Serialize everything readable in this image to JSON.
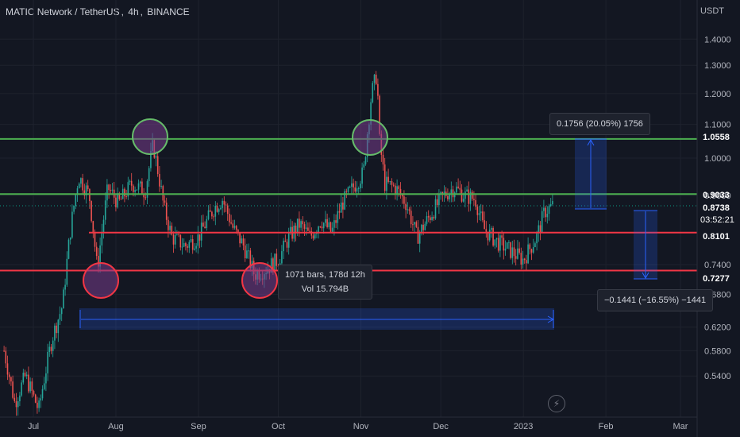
{
  "header": {
    "symbol": "MATIC Network / TetherUS",
    "interval": "4h",
    "exchange": "BINANCE",
    "sep": ", "
  },
  "currency": "USDT",
  "price_axis": {
    "labels": [
      "1.4000",
      "1.3000",
      "1.2000",
      "1.1000",
      "1.0000",
      "0.9000",
      "0.7400",
      "0.6800",
      "0.6200",
      "0.5800",
      "0.5400"
    ],
    "values": [
      1.4,
      1.3,
      1.2,
      1.1,
      1.0,
      0.9,
      0.74,
      0.68,
      0.62,
      0.58,
      0.54
    ]
  },
  "time_axis": {
    "labels": [
      "Jul",
      "Aug",
      "Sep",
      "Oct",
      "Nov",
      "Dec",
      "2023",
      "Feb",
      "Mar"
    ]
  },
  "price_tags": [
    {
      "label": "1.0558",
      "color": "#4caf50"
    },
    {
      "label": "0.9033",
      "color": "#4caf50"
    },
    {
      "label": "0.8738",
      "color": "#089981"
    },
    {
      "label": "03:52:21",
      "color": "#089981"
    },
    {
      "label": "0.8101",
      "color": "#f23645"
    },
    {
      "label": "0.7277",
      "color": "#f23645"
    }
  ],
  "horizontal_lines": [
    {
      "price": 1.0558,
      "color": "#4caf50",
      "name": "resistance-upper"
    },
    {
      "price": 0.9033,
      "color": "#4caf50",
      "name": "resistance-lower"
    },
    {
      "price": 0.8101,
      "color": "#f23645",
      "name": "support-upper"
    },
    {
      "price": 0.7277,
      "color": "#f23645",
      "name": "support-lower"
    }
  ],
  "tooltips": {
    "upper_measure": "0.1756 (20.05%) 1756",
    "lower_measure": "−0.1441 (−16.55%) −1441",
    "range_bars": "1071 bars, 178d 12h",
    "range_vol": "Vol 15.794B"
  },
  "icons": {
    "lightning": "lightning-icon"
  },
  "colors": {
    "background": "#131722",
    "bull": "#26a69a",
    "bear": "#ef5350",
    "green_line": "#4caf50",
    "red_line": "#f23645",
    "measure": "#2962ff"
  },
  "chart_data": {
    "type": "candlestick",
    "interval": "4h",
    "y_scale": "log",
    "ylim": [
      0.52,
      1.45
    ],
    "x_range": [
      "2022-06-20",
      "2023-03-10"
    ],
    "close_path": [
      [
        "2022-06-20",
        0.58
      ],
      [
        "2022-06-24",
        0.5
      ],
      [
        "2022-06-28",
        0.54
      ],
      [
        "2022-07-03",
        0.49
      ],
      [
        "2022-07-08",
        0.6
      ],
      [
        "2022-07-12",
        0.66
      ],
      [
        "2022-07-15",
        0.82
      ],
      [
        "2022-07-18",
        0.95
      ],
      [
        "2022-07-22",
        0.9
      ],
      [
        "2022-07-25",
        0.73
      ],
      [
        "2022-07-29",
        0.92
      ],
      [
        "2022-08-02",
        0.88
      ],
      [
        "2022-08-07",
        0.93
      ],
      [
        "2022-08-12",
        0.91
      ],
      [
        "2022-08-15",
        1.04
      ],
      [
        "2022-08-19",
        0.87
      ],
      [
        "2022-08-22",
        0.8
      ],
      [
        "2022-08-27",
        0.78
      ],
      [
        "2022-09-01",
        0.8
      ],
      [
        "2022-09-07",
        0.87
      ],
      [
        "2022-09-10",
        0.89
      ],
      [
        "2022-09-14",
        0.82
      ],
      [
        "2022-09-18",
        0.78
      ],
      [
        "2022-09-22",
        0.72
      ],
      [
        "2022-09-26",
        0.73
      ],
      [
        "2022-10-01",
        0.75
      ],
      [
        "2022-10-05",
        0.8
      ],
      [
        "2022-10-09",
        0.83
      ],
      [
        "2022-10-13",
        0.8
      ],
      [
        "2022-10-17",
        0.84
      ],
      [
        "2022-10-21",
        0.81
      ],
      [
        "2022-10-25",
        0.88
      ],
      [
        "2022-10-29",
        0.92
      ],
      [
        "2022-11-02",
        0.96
      ],
      [
        "2022-11-05",
        1.2
      ],
      [
        "2022-11-07",
        1.27
      ],
      [
        "2022-11-08",
        1.05
      ],
      [
        "2022-11-10",
        0.93
      ],
      [
        "2022-11-14",
        0.92
      ],
      [
        "2022-11-18",
        0.88
      ],
      [
        "2022-11-22",
        0.8
      ],
      [
        "2022-11-28",
        0.86
      ],
      [
        "2022-12-02",
        0.9
      ],
      [
        "2022-12-06",
        0.92
      ],
      [
        "2022-12-10",
        0.9
      ],
      [
        "2022-12-14",
        0.89
      ],
      [
        "2022-12-17",
        0.82
      ],
      [
        "2022-12-22",
        0.79
      ],
      [
        "2022-12-27",
        0.77
      ],
      [
        "2023-01-01",
        0.75
      ],
      [
        "2023-01-03",
        0.77
      ],
      [
        "2023-01-06",
        0.8
      ],
      [
        "2023-01-09",
        0.86
      ],
      [
        "2023-01-12",
        0.8738
      ]
    ],
    "levels": [
      1.0558,
      0.9033,
      0.8101,
      0.7277
    ],
    "last_price": 0.8738
  }
}
